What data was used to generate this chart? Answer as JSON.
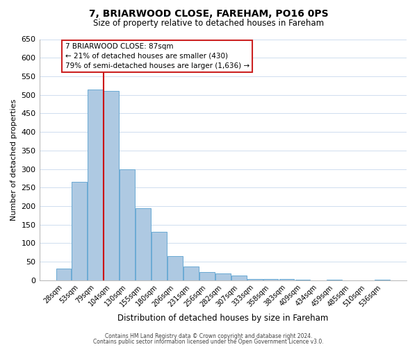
{
  "title": "7, BRIARWOOD CLOSE, FAREHAM, PO16 0PS",
  "subtitle": "Size of property relative to detached houses in Fareham",
  "xlabel": "Distribution of detached houses by size in Fareham",
  "ylabel": "Number of detached properties",
  "bar_labels": [
    "28sqm",
    "53sqm",
    "79sqm",
    "104sqm",
    "130sqm",
    "155sqm",
    "180sqm",
    "206sqm",
    "231sqm",
    "256sqm",
    "282sqm",
    "307sqm",
    "333sqm",
    "358sqm",
    "383sqm",
    "409sqm",
    "434sqm",
    "459sqm",
    "485sqm",
    "510sqm",
    "536sqm"
  ],
  "bar_values": [
    32,
    265,
    515,
    510,
    300,
    195,
    130,
    65,
    38,
    22,
    18,
    12,
    4,
    3,
    3,
    1,
    0,
    1,
    0,
    0,
    1
  ],
  "bar_color": "#aec9e2",
  "bar_edge_color": "#6aaad4",
  "vline_color": "#cc0000",
  "ylim": [
    0,
    650
  ],
  "yticks": [
    0,
    50,
    100,
    150,
    200,
    250,
    300,
    350,
    400,
    450,
    500,
    550,
    600,
    650
  ],
  "annotation_line1": "7 BRIARWOOD CLOSE: 87sqm",
  "annotation_line2": "← 21% of detached houses are smaller (430)",
  "annotation_line3": "79% of semi-detached houses are larger (1,636) →",
  "footer_line1": "Contains HM Land Registry data © Crown copyright and database right 2024.",
  "footer_line2": "Contains public sector information licensed under the Open Government Licence v3.0.",
  "background_color": "#ffffff",
  "grid_color": "#c8d8ec"
}
